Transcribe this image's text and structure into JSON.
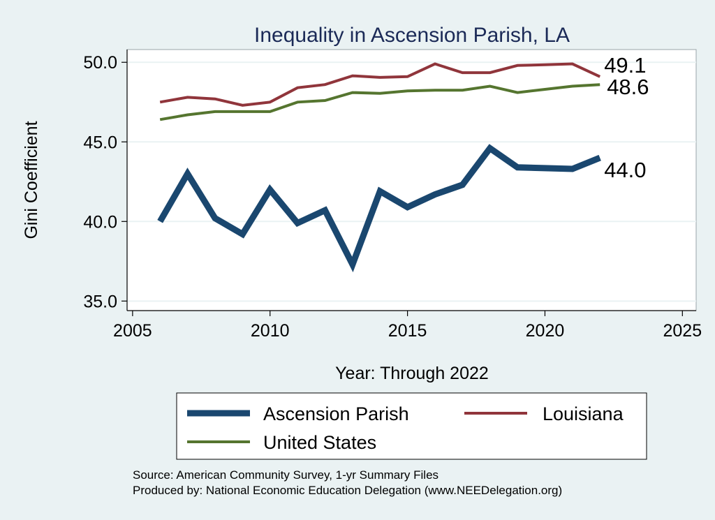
{
  "chart_data": {
    "type": "line",
    "title": "Inequality in Ascension Parish, LA",
    "xlabel": "Year: Through 2022",
    "ylabel": "Gini Coefficient",
    "xlim": [
      2004.8,
      2025.5
    ],
    "ylim": [
      34.4,
      50.8
    ],
    "xticks": [
      2005,
      2010,
      2015,
      2020,
      2025
    ],
    "yticks": [
      35,
      40,
      45,
      50
    ],
    "xtick_labels": [
      "2005",
      "2010",
      "2015",
      "2020",
      "2025"
    ],
    "ytick_labels": [
      "35.0",
      "40.0",
      "45.0",
      "50.0"
    ],
    "grid": true,
    "legend_position": "bottom",
    "x": [
      2006,
      2007,
      2008,
      2009,
      2010,
      2011,
      2012,
      2013,
      2014,
      2015,
      2016,
      2017,
      2018,
      2019,
      2020,
      2021,
      2022
    ],
    "series": [
      {
        "name": "Ascension Parish",
        "color": "#1a476f",
        "values": [
          40.0,
          43.0,
          40.2,
          39.2,
          42.0,
          39.9,
          40.7,
          37.3,
          41.9,
          40.9,
          41.7,
          42.3,
          44.6,
          43.4,
          43.35,
          43.3,
          44.0
        ],
        "end_label": "44.0"
      },
      {
        "name": "Louisiana",
        "color": "#90353b",
        "values": [
          47.5,
          47.8,
          47.7,
          47.3,
          47.5,
          48.4,
          48.6,
          49.15,
          49.05,
          49.1,
          49.9,
          49.35,
          49.35,
          49.8,
          49.85,
          49.9,
          49.1
        ],
        "end_label": "49.1"
      },
      {
        "name": "United States",
        "color": "#55752f",
        "values": [
          46.4,
          46.7,
          46.9,
          46.9,
          46.9,
          47.5,
          47.6,
          48.1,
          48.05,
          48.2,
          48.25,
          48.25,
          48.5,
          48.1,
          48.3,
          48.5,
          48.6
        ],
        "end_label": "48.6"
      }
    ]
  },
  "source_lines": [
    "Source: American Community Survey, 1-yr Summary Files",
    "Produced by: National Economic Education Delegation (www.NEEDelegation.org)"
  ],
  "colors": {
    "background": "#eaf2f3",
    "plot_background": "#ffffff",
    "grid": "#eaf2f3",
    "title": "#1b2a57"
  }
}
